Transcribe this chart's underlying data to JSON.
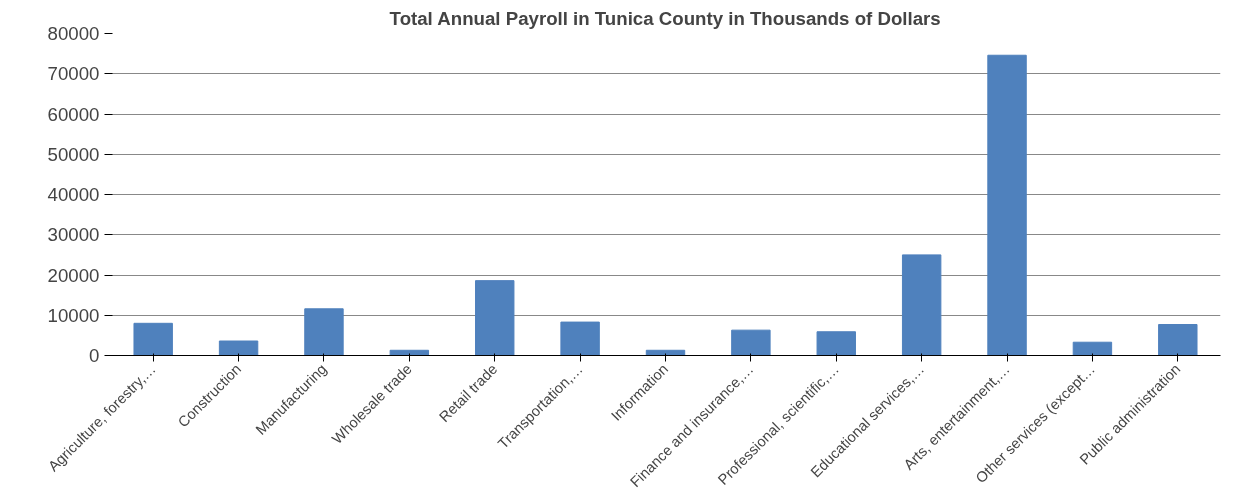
{
  "chart_data": {
    "type": "bar",
    "title": "Total Annual Payroll in Tunica County in Thousands of Dollars",
    "categories": [
      "Agriculture, forestry,…",
      "Construction",
      "Manufacturing",
      "Wholesale trade",
      "Retail trade",
      "Transportation,…",
      "Information",
      "Finance and insurance,…",
      "Professional, scientific,…",
      "Educational services,…",
      "Arts, entertainment,…",
      "Other services (except…",
      "Public administration"
    ],
    "values": [
      8000,
      3600,
      11600,
      1300,
      18600,
      8300,
      1300,
      6300,
      5900,
      25000,
      74600,
      3300,
      7700
    ],
    "color": "#4f81bd",
    "ylim": [
      0,
      80000
    ],
    "yticks": [
      0,
      10000,
      20000,
      30000,
      40000,
      50000,
      60000,
      70000,
      80000
    ],
    "grid": "y"
  }
}
